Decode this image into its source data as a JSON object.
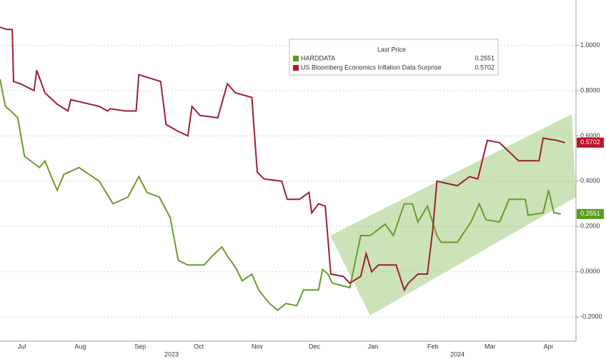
{
  "chart_data": {
    "type": "line",
    "legend_title": "Last Price",
    "xlim": [
      0,
      42
    ],
    "xticks": [
      {
        "value": 1.6,
        "label": "Jul"
      },
      {
        "value": 5.9,
        "label": "Aug"
      },
      {
        "value": 10.3,
        "label": "Sep"
      },
      {
        "value": 14.6,
        "label": "Oct"
      },
      {
        "value": 18.9,
        "label": "Nov"
      },
      {
        "value": 23.1,
        "label": "Dec"
      },
      {
        "value": 27.4,
        "label": "Jan"
      },
      {
        "value": 31.8,
        "label": "Feb"
      },
      {
        "value": 36.0,
        "label": "Mar"
      },
      {
        "value": 40.3,
        "label": "Apr"
      }
    ],
    "year_labels": [
      {
        "value": 12.6,
        "label": "2023"
      },
      {
        "value": 33.6,
        "label": "2024"
      }
    ],
    "ylim": [
      -0.3,
      1.2
    ],
    "yticks": [
      {
        "value": -0.2,
        "label": "-0.2000"
      },
      {
        "value": 0,
        "label": "0.0000"
      },
      {
        "value": 0.2,
        "label": "0.2000"
      },
      {
        "value": 0.4,
        "label": "0.4000"
      },
      {
        "value": 0.6,
        "label": "0.6000"
      },
      {
        "value": 0.8,
        "label": "0.8000"
      },
      {
        "value": 1.0,
        "label": "1.0000"
      }
    ],
    "grid": true,
    "series": [
      {
        "name": "HARDDATA",
        "color": "#6b9b2a",
        "tag_color": "#5b9a1f",
        "x": [
          0,
          0.4,
          0.8,
          1.3,
          1.8,
          2.9,
          3.3,
          3.7,
          4.2,
          4.7,
          5.8,
          7.3,
          8.3,
          9.4,
          10.2,
          10.8,
          11.7,
          12.5,
          13.1,
          13.8,
          15.0,
          15.6,
          16.3,
          16.7,
          17.3,
          17.8,
          18.5,
          19.0,
          19.8,
          20.4,
          21.0,
          21.8,
          22.3,
          23.4,
          23.7,
          24.1,
          24.4,
          25.7,
          26.5,
          27.2,
          28.3,
          28.9,
          29.7,
          30.3,
          30.7,
          31.4,
          32.1,
          32.4,
          33.6,
          34.6,
          35.2,
          35.7,
          36.7,
          37.4,
          38.6,
          38.8,
          39.9,
          40.3,
          40.7,
          41.2
        ],
        "values": [
          0.85,
          0.73,
          0.71,
          0.68,
          0.51,
          0.46,
          0.49,
          0.43,
          0.36,
          0.43,
          0.46,
          0.4,
          0.3,
          0.33,
          0.42,
          0.35,
          0.33,
          0.24,
          0.05,
          0.03,
          0.03,
          0.07,
          0.11,
          0.07,
          0.02,
          -0.04,
          -0.01,
          -0.08,
          -0.14,
          -0.17,
          -0.14,
          -0.15,
          -0.08,
          -0.08,
          0.01,
          -0.01,
          -0.05,
          -0.07,
          0.16,
          0.16,
          0.21,
          0.16,
          0.3,
          0.3,
          0.22,
          0.29,
          0.16,
          0.13,
          0.13,
          0.22,
          0.3,
          0.23,
          0.22,
          0.32,
          0.32,
          0.25,
          0.26,
          0.36,
          0.26,
          0.2551
        ]
      },
      {
        "name": "US Bloomberg Economics Inflation Data Surprise",
        "color": "#9e1d32",
        "tag_color": "#b8172c",
        "x": [
          0,
          0.5,
          0.9,
          1.0,
          1.5,
          2.5,
          2.7,
          3.3,
          4.2,
          5.0,
          5.2,
          7.3,
          7.9,
          8.1,
          9.2,
          10.0,
          10.2,
          11.8,
          12.2,
          13.1,
          13.8,
          14.1,
          14.7,
          16.0,
          16.7,
          17.3,
          18.5,
          18.9,
          19.4,
          20.7,
          21.1,
          22.0,
          22.7,
          22.9,
          23.4,
          23.9,
          24.3,
          25.2,
          25.7,
          26.5,
          26.9,
          27.3,
          27.8,
          29.1,
          29.7,
          30.0,
          30.7,
          31.4,
          31.8,
          32.1,
          33.6,
          34.5,
          35.1,
          35.8,
          36.7,
          37.4,
          38.1,
          39.6,
          39.9,
          40.9,
          41.5
        ],
        "values": [
          1.08,
          1.07,
          1.07,
          0.84,
          0.83,
          0.8,
          0.89,
          0.79,
          0.74,
          0.71,
          0.76,
          0.73,
          0.71,
          0.72,
          0.71,
          0.71,
          0.87,
          0.84,
          0.65,
          0.62,
          0.6,
          0.73,
          0.69,
          0.68,
          0.83,
          0.79,
          0.77,
          0.44,
          0.41,
          0.4,
          0.32,
          0.32,
          0.35,
          0.26,
          0.3,
          0.29,
          -0.01,
          -0.02,
          -0.05,
          -0.02,
          0.08,
          0.0,
          0.03,
          0.03,
          -0.08,
          -0.05,
          -0.01,
          -0.01,
          0.19,
          0.4,
          0.38,
          0.42,
          0.41,
          0.58,
          0.57,
          0.53,
          0.49,
          0.49,
          0.59,
          0.58,
          0.5702
        ]
      }
    ]
  }
}
